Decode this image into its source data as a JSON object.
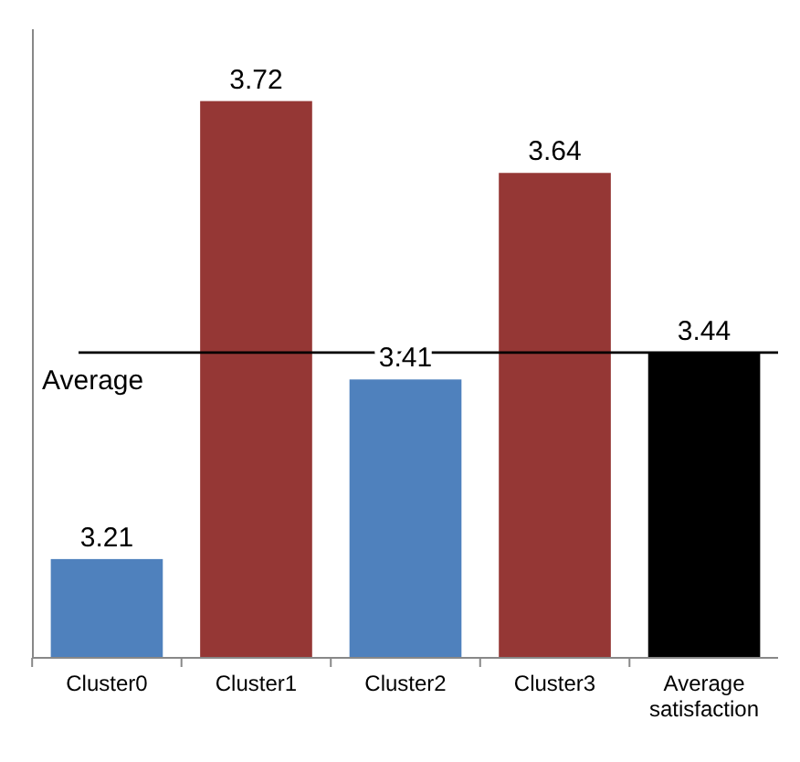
{
  "chart_data": {
    "type": "bar",
    "categories": [
      "Cluster0",
      "Cluster1",
      "Cluster2",
      "Cluster3",
      "Average satisfaction"
    ],
    "values": [
      3.21,
      3.72,
      3.41,
      3.64,
      3.44
    ],
    "colors": [
      "#4f81bd",
      "#953735",
      "#4f81bd",
      "#953735",
      "#000000"
    ],
    "ylim": [
      3.1,
      3.8
    ],
    "tick_labels": "x",
    "data_labels": true,
    "ref_lines": [
      {
        "axis": "y",
        "value": 3.44,
        "label": "Average",
        "color": "#000000"
      }
    ]
  }
}
